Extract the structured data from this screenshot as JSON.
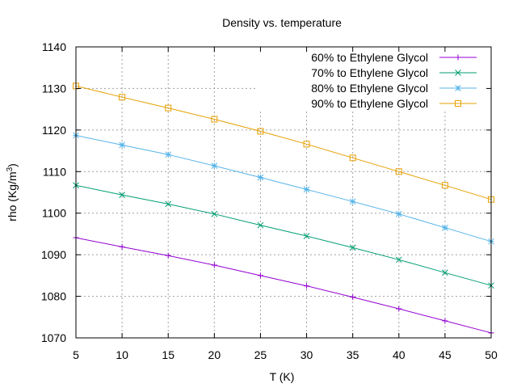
{
  "chart_data": {
    "type": "line",
    "title": "Density vs. temperature",
    "xlabel": "T (K)",
    "ylabel": "rho (Kg/m",
    "ylabel_superscript": "3",
    "ylabel_suffix": ")",
    "xlim": [
      5,
      50
    ],
    "ylim": [
      1070,
      1140
    ],
    "xticks": [
      5,
      10,
      15,
      20,
      25,
      30,
      35,
      40,
      45,
      50
    ],
    "yticks": [
      1070,
      1080,
      1090,
      1100,
      1110,
      1120,
      1130,
      1140
    ],
    "grid": true,
    "legend_position": "top-right",
    "x": [
      5,
      10,
      15,
      20,
      25,
      30,
      35,
      40,
      45,
      50
    ],
    "series": [
      {
        "name": "60% to Ethylene Glycol",
        "color": "#9400d3",
        "marker": "plus",
        "values": [
          1094.1,
          1091.9,
          1089.8,
          1087.5,
          1085.0,
          1082.5,
          1079.8,
          1077.0,
          1074.1,
          1071.2
        ]
      },
      {
        "name": "70% to Ethylene Glycol",
        "color": "#009e73",
        "marker": "cross",
        "values": [
          1106.7,
          1104.4,
          1102.2,
          1099.8,
          1097.1,
          1094.5,
          1091.7,
          1088.8,
          1085.7,
          1082.6
        ]
      },
      {
        "name": "80% to Ethylene Glycol",
        "color": "#56b4e9",
        "marker": "star",
        "values": [
          1118.7,
          1116.4,
          1114.1,
          1111.4,
          1108.6,
          1105.7,
          1102.8,
          1099.8,
          1096.5,
          1093.2
        ]
      },
      {
        "name": "90% to Ethylene Glycol",
        "color": "#e69f00",
        "marker": "square",
        "values": [
          1130.6,
          1127.9,
          1125.3,
          1122.6,
          1119.7,
          1116.6,
          1113.3,
          1110.0,
          1106.7,
          1103.3
        ]
      }
    ]
  }
}
